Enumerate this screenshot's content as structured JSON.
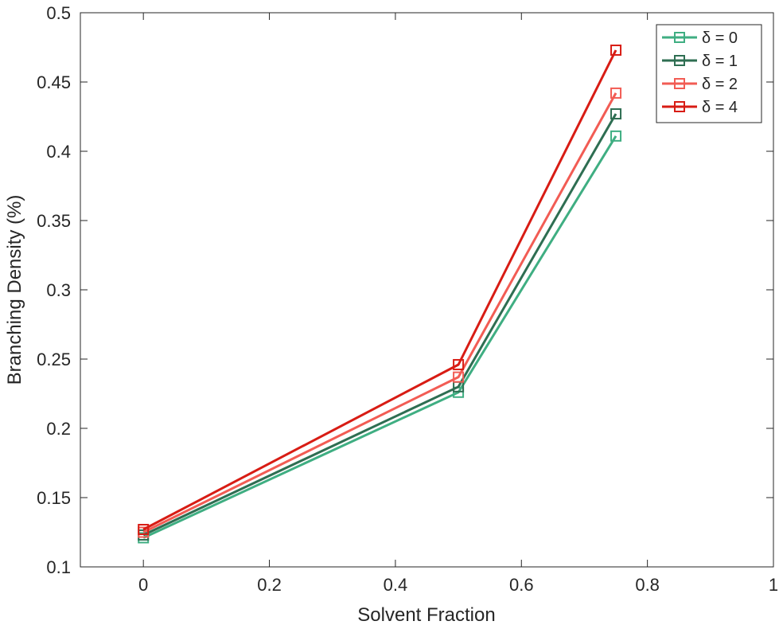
{
  "chart_data": {
    "type": "line",
    "xlabel": "Solvent Fraction",
    "ylabel": "Branching Density (%)",
    "xlim": [
      -0.1,
      1.0
    ],
    "ylim": [
      0.1,
      0.5
    ],
    "xticks": [
      0,
      0.2,
      0.4,
      0.6,
      0.8,
      1
    ],
    "xtick_labels": [
      "0",
      "0.2",
      "0.4",
      "0.6",
      "0.8",
      "1"
    ],
    "yticks": [
      0.1,
      0.15,
      0.2,
      0.25,
      0.3,
      0.35,
      0.4,
      0.45,
      0.5
    ],
    "ytick_labels": [
      "0.1",
      "0.15",
      "0.2",
      "0.25",
      "0.3",
      "0.35",
      "0.4",
      "0.45",
      "0.5"
    ],
    "grid": false,
    "legend_position": "top-right",
    "marker": "square",
    "x": [
      0,
      0.5,
      0.75
    ],
    "series": [
      {
        "name": "δ = 0",
        "color": "#3fae82",
        "values": [
          0.121,
          0.226,
          0.411
        ]
      },
      {
        "name": "δ = 1",
        "color": "#2e6e52",
        "values": [
          0.123,
          0.23,
          0.427
        ]
      },
      {
        "name": "δ = 2",
        "color": "#f25c54",
        "values": [
          0.125,
          0.237,
          0.442
        ]
      },
      {
        "name": "δ = 4",
        "color": "#d81c14",
        "values": [
          0.127,
          0.246,
          0.473
        ]
      }
    ]
  }
}
